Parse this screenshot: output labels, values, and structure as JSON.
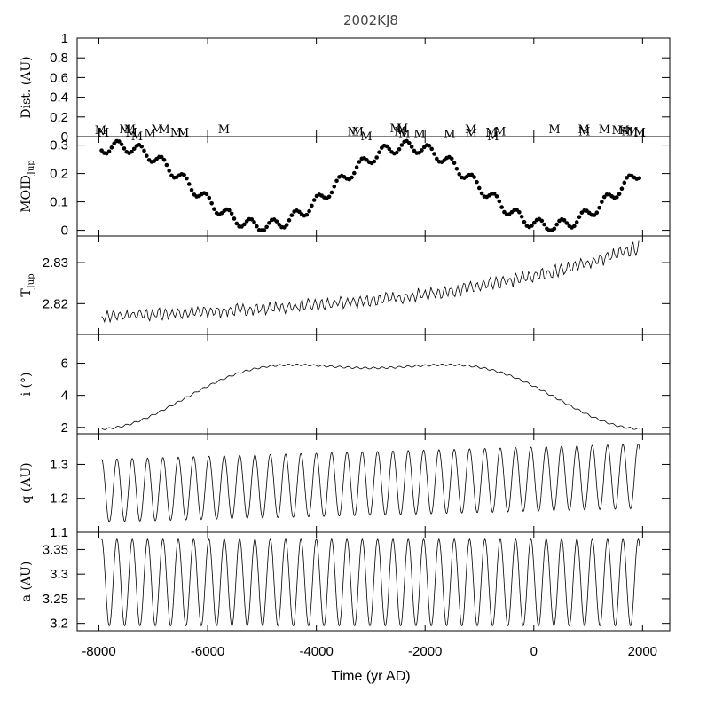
{
  "chart_data": {
    "type": "line",
    "title": "2002KJ8",
    "xlabel": "Time (yr AD)",
    "xlim": [
      -8400,
      2500
    ],
    "xticks": [
      -8000,
      -6000,
      -4000,
      -2000,
      0,
      2000
    ],
    "xtick_labels": [
      "-8000",
      "-6000",
      "-4000",
      "-2000",
      "0",
      "2000"
    ],
    "panels": [
      {
        "id": "dist",
        "ylabel": "Dist. (AU)",
        "ylim": [
          0,
          1
        ],
        "yticks": [
          0,
          0.2,
          0.4,
          0.6,
          0.8,
          1
        ],
        "ytick_labels": [
          "0",
          "0.2",
          "0.4",
          "0.6",
          "0.8",
          "1"
        ],
        "marker": "M",
        "encounters": [
          {
            "t": -7970,
            "d": 0.07
          },
          {
            "t": -7920,
            "d": 0.05
          },
          {
            "t": -7520,
            "d": 0.08
          },
          {
            "t": -7430,
            "d": 0.08
          },
          {
            "t": -7400,
            "d": 0.05
          },
          {
            "t": -7300,
            "d": 0.01
          },
          {
            "t": -7060,
            "d": 0.04
          },
          {
            "t": -6930,
            "d": 0.08
          },
          {
            "t": -6800,
            "d": 0.08
          },
          {
            "t": -6580,
            "d": 0.05
          },
          {
            "t": -6450,
            "d": 0.05
          },
          {
            "t": -5700,
            "d": 0.08
          },
          {
            "t": -3320,
            "d": 0.06
          },
          {
            "t": -3240,
            "d": 0.06
          },
          {
            "t": -3080,
            "d": 0.01
          },
          {
            "t": -2540,
            "d": 0.09
          },
          {
            "t": -2460,
            "d": 0.06
          },
          {
            "t": -2420,
            "d": 0.09
          },
          {
            "t": -2380,
            "d": 0.03
          },
          {
            "t": -2100,
            "d": 0.03
          },
          {
            "t": -1550,
            "d": 0.03
          },
          {
            "t": -1160,
            "d": 0.08
          },
          {
            "t": -1150,
            "d": 0.04
          },
          {
            "t": -780,
            "d": 0.05
          },
          {
            "t": -750,
            "d": 0.01
          },
          {
            "t": -620,
            "d": 0.06
          },
          {
            "t": 380,
            "d": 0.08
          },
          {
            "t": 920,
            "d": 0.08
          },
          {
            "t": 930,
            "d": 0.06
          },
          {
            "t": 1300,
            "d": 0.08
          },
          {
            "t": 1540,
            "d": 0.07
          },
          {
            "t": 1650,
            "d": 0.07
          },
          {
            "t": 1720,
            "d": 0.06
          },
          {
            "t": 1810,
            "d": 0.06
          },
          {
            "t": 1950,
            "d": 0.05
          }
        ]
      },
      {
        "id": "moid",
        "ylabel": "MOID",
        "ylabel_sub": "Jup",
        "ylim": [
          -0.02,
          0.33
        ],
        "yticks": [
          0,
          0.1,
          0.2,
          0.3
        ],
        "ytick_labels": [
          "0",
          "0.1",
          "0.2",
          "0.3"
        ],
        "style": "dots"
      },
      {
        "id": "tjup",
        "ylabel": "T",
        "ylabel_sub": "Jup",
        "ylim": [
          2.8125,
          2.8365
        ],
        "yticks": [
          2.82,
          2.83
        ],
        "ytick_labels": [
          "2.82",
          "2.83"
        ],
        "style": "line"
      },
      {
        "id": "incl",
        "ylabel": "i (°)",
        "ylim": [
          1.6,
          7.8
        ],
        "yticks": [
          2,
          4,
          6
        ],
        "ytick_labels": [
          "2",
          "4",
          "6"
        ],
        "style": "line"
      },
      {
        "id": "q",
        "ylabel": "q (AU)",
        "ylim": [
          1.1,
          1.39
        ],
        "yticks": [
          1.1,
          1.2,
          1.3
        ],
        "ytick_labels": [
          "1.1",
          "1.2",
          "1.3"
        ],
        "style": "line"
      },
      {
        "id": "a",
        "ylabel": "a (AU)",
        "ylim": [
          3.185,
          3.385
        ],
        "yticks": [
          3.2,
          3.25,
          3.3,
          3.35
        ],
        "ytick_labels": [
          "3.2",
          "3.25",
          "3.3",
          "3.35"
        ],
        "style": "line"
      }
    ]
  }
}
